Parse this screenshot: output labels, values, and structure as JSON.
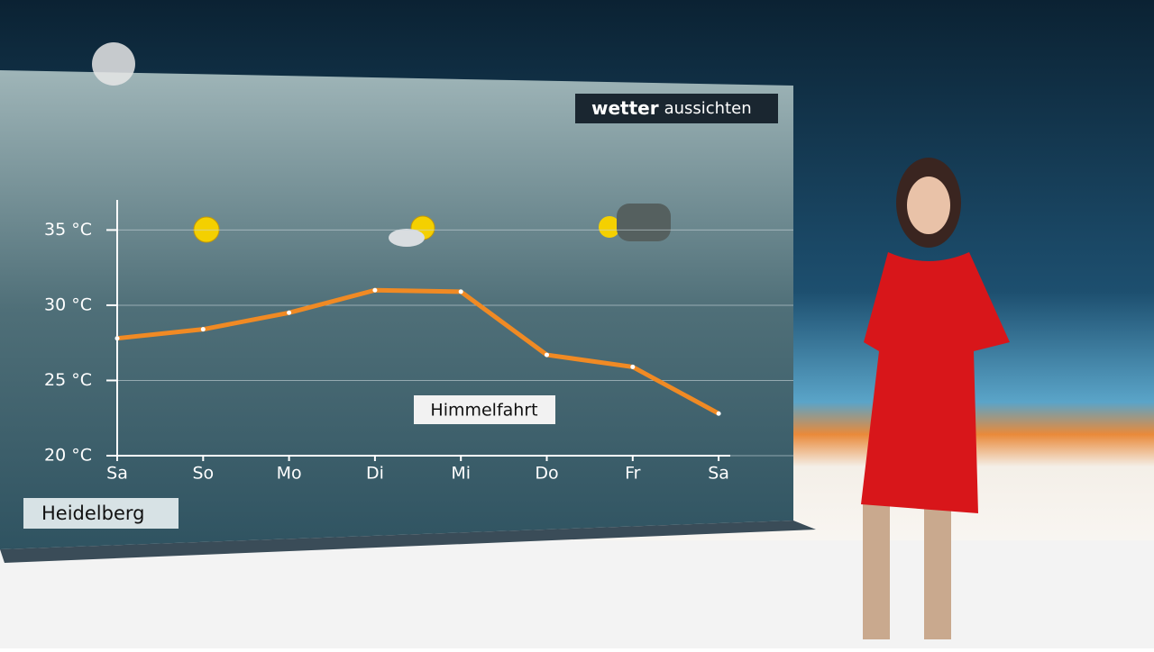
{
  "chart_data": {
    "type": "line",
    "categories": [
      "Sa",
      "So",
      "Mo",
      "Di",
      "Mi",
      "Do",
      "Fr",
      "Sa"
    ],
    "series": [
      {
        "name": "Heidelberg",
        "color": "#f08a24",
        "values": [
          27.8,
          28.4,
          29.5,
          31.0,
          30.9,
          26.7,
          25.9,
          22.8
        ]
      }
    ],
    "ylim": [
      20,
      37
    ],
    "yticks": [
      {
        "value": 20,
        "label": "20 °C"
      },
      {
        "value": 25,
        "label": "25 °C"
      },
      {
        "value": 30,
        "label": "30 °C"
      },
      {
        "value": 35,
        "label": "35 °C"
      }
    ],
    "grid": true,
    "annotations": [
      "Himmelfahrt"
    ]
  },
  "badge": {
    "bold": "wetter",
    "normal": "aussichten"
  }
}
